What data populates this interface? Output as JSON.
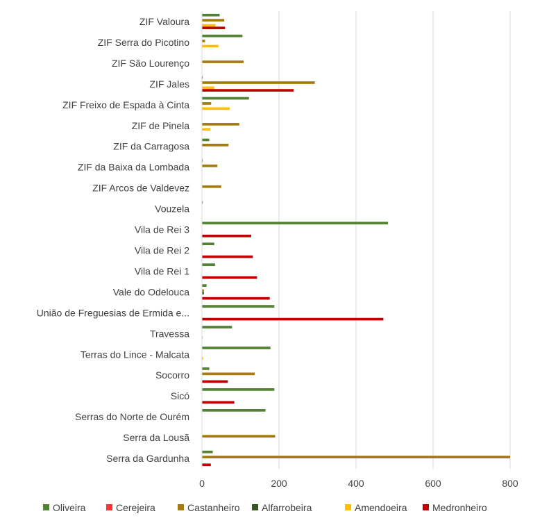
{
  "chart_data": {
    "type": "bar",
    "orientation": "horizontal",
    "categories": [
      "ZIF Valoura",
      "ZIF Serra do Picotino",
      "ZIF São Lourenço",
      "ZIF Jales",
      "ZIF Freixo de Espada à Cinta",
      "ZIF de Pinela",
      "ZIF da Carragosa",
      "ZIF da Baixa da Lombada",
      "ZIF Arcos de Valdevez",
      "Vouzela",
      "Vila de Rei 3",
      "Vila de Rei 2",
      "Vila de Rei 1",
      "Vale do Odelouca",
      "União de Freguesias de Ermida e...",
      "Travessa",
      "Terras do Lince - Malcata",
      "Socorro",
      "Sicó",
      "Serras do Norte de Ourém",
      "Serra da Lousã",
      "Serra da Gardunha"
    ],
    "series": [
      {
        "name": "Oliveira",
        "color": "#548235",
        "values": [
          46,
          105,
          0,
          2,
          122,
          0,
          19,
          2,
          0,
          2,
          483,
          32,
          34,
          12,
          188,
          78,
          178,
          19,
          188,
          165,
          0,
          28
        ]
      },
      {
        "name": "Cerejeira",
        "color": "#ff3333",
        "values": [
          0,
          0,
          0,
          0,
          0,
          0,
          0,
          0,
          0,
          0,
          0,
          0,
          0,
          0,
          0,
          0,
          0,
          0,
          0,
          0,
          0,
          0
        ]
      },
      {
        "name": "Castanheiro",
        "color": "#a57a10",
        "values": [
          58,
          8,
          108,
          293,
          24,
          97,
          69,
          40,
          50,
          0,
          0,
          0,
          0,
          5,
          0,
          0,
          0,
          137,
          0,
          0,
          190,
          800
        ]
      },
      {
        "name": "Alfarrobeira",
        "color": "#375623",
        "values": [
          0,
          0,
          0,
          0,
          0,
          0,
          0,
          0,
          0,
          0,
          0,
          0,
          0,
          5,
          0,
          0,
          0,
          0,
          0,
          0,
          0,
          0
        ]
      },
      {
        "name": "Amendoeira",
        "color": "#ffc000",
        "values": [
          35,
          43,
          0,
          32,
          72,
          22,
          0,
          0,
          0,
          0,
          0,
          0,
          0,
          0,
          0,
          2,
          3,
          0,
          0,
          0,
          0,
          0
        ]
      },
      {
        "name": "Medronheiro",
        "color": "#c00000",
        "values": [
          60,
          0,
          0,
          238,
          0,
          0,
          0,
          0,
          0,
          0,
          128,
          132,
          143,
          176,
          471,
          0,
          0,
          67,
          84,
          0,
          0,
          23
        ]
      }
    ],
    "xlim": [
      0,
      800
    ],
    "xticks": [
      0,
      200,
      400,
      600,
      800
    ],
    "title": "",
    "xlabel": "",
    "ylabel": "",
    "grid": "vertical",
    "legend": "bottom"
  }
}
